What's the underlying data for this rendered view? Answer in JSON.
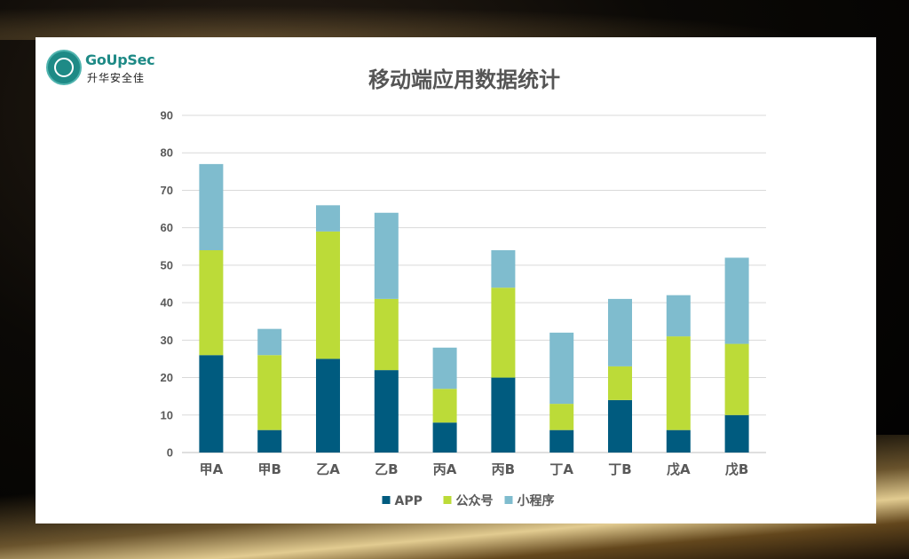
{
  "logo": {
    "name_en": "GoUpSec",
    "name_cn": "升华安全佳"
  },
  "chart_data": {
    "type": "bar",
    "stacked": true,
    "title": "移动端应用数据统计",
    "categories": [
      "甲A",
      "甲B",
      "乙A",
      "乙B",
      "丙A",
      "丙B",
      "丁A",
      "丁B",
      "戊A",
      "戊B"
    ],
    "series": [
      {
        "name": "APP",
        "color": "#005b7f",
        "values": [
          26,
          6,
          25,
          22,
          8,
          20,
          6,
          14,
          6,
          10
        ]
      },
      {
        "name": "公众号",
        "color": "#bcdb38",
        "values": [
          28,
          20,
          34,
          19,
          9,
          24,
          7,
          9,
          25,
          19
        ]
      },
      {
        "name": "小程序",
        "color": "#7fbcce",
        "values": [
          23,
          7,
          7,
          23,
          11,
          10,
          19,
          18,
          11,
          23
        ]
      }
    ],
    "yticks": [
      "0",
      "10",
      "20",
      "30",
      "40",
      "50",
      "60",
      "70",
      "80",
      "90"
    ],
    "ylim": [
      0,
      90
    ],
    "xlabel": "",
    "ylabel": "",
    "grid": true,
    "legend": "bottom"
  }
}
